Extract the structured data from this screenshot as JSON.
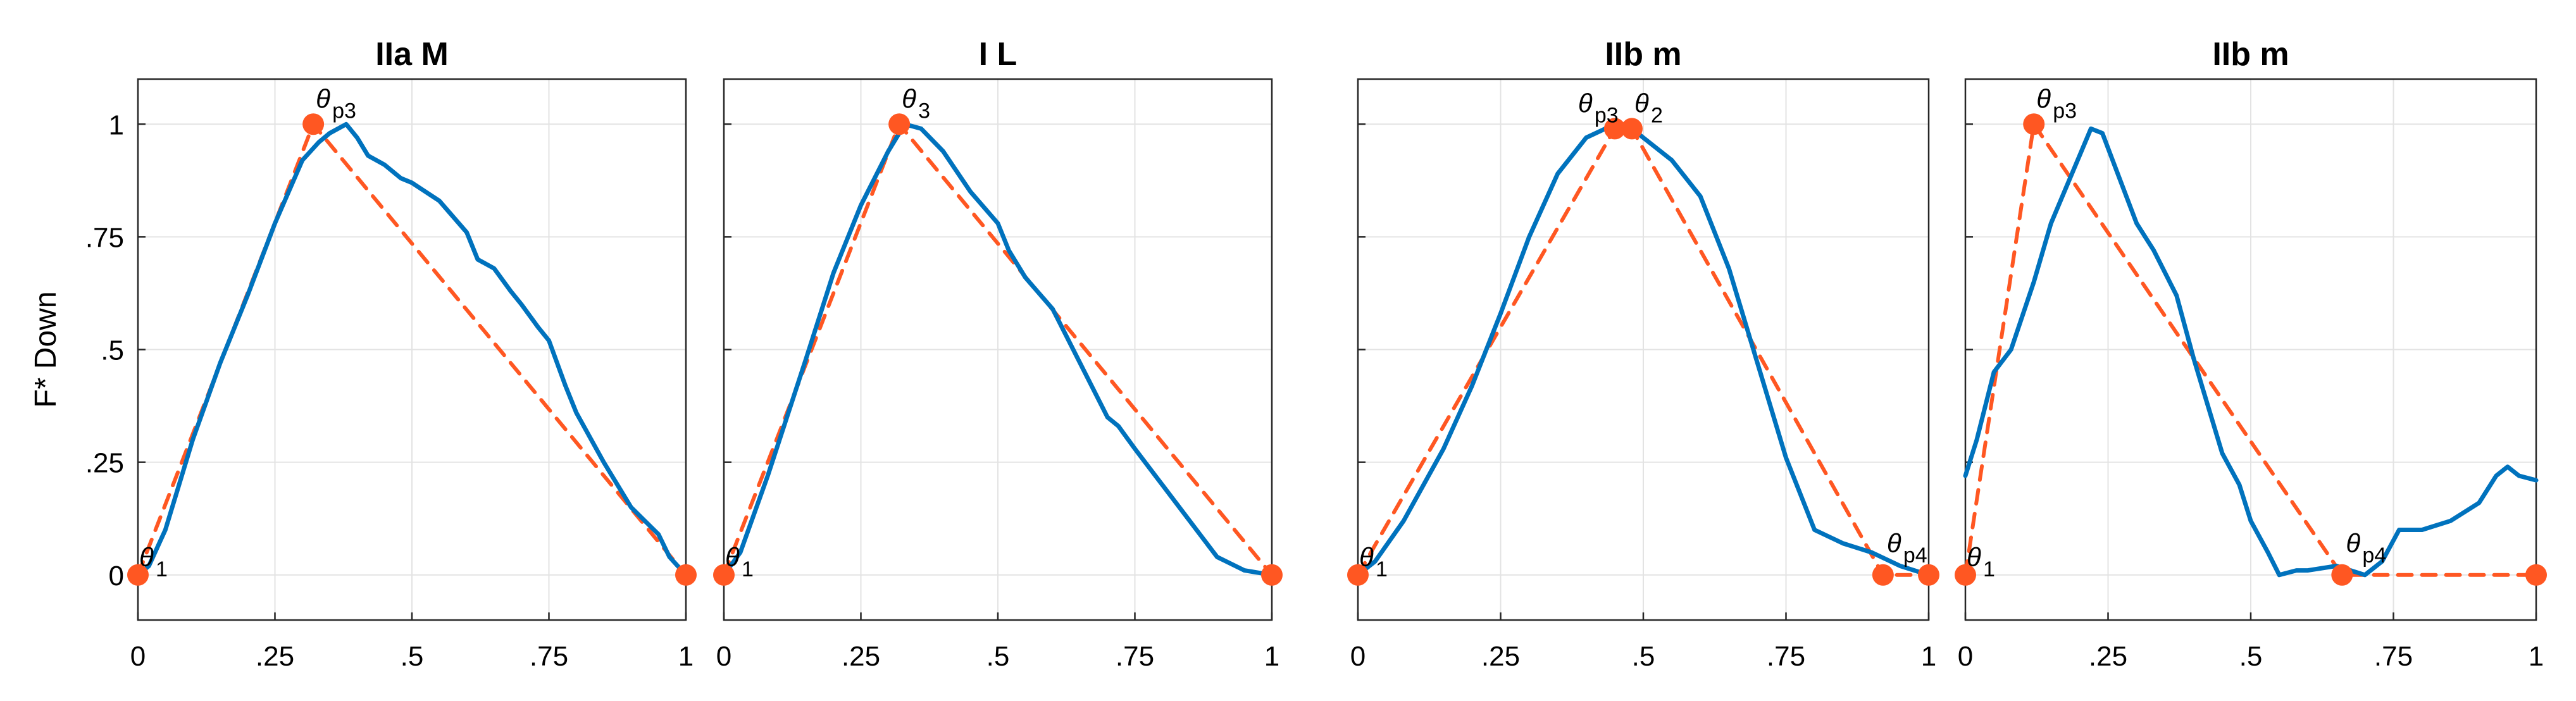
{
  "chart_data": [
    {
      "type": "line",
      "title": "IIa M",
      "ylabel": "F* Down",
      "xlabel": "",
      "xlim": [
        0,
        1.0
      ],
      "ylim": [
        -0.1,
        1.1
      ],
      "xticks": [
        "0",
        ".25",
        ".5",
        ".75",
        "1"
      ],
      "yticks": [
        "0",
        ".25",
        ".5",
        ".75",
        "1"
      ],
      "grid": true,
      "series": [
        {
          "role": "profile",
          "color": "#0072BD",
          "style": "solid",
          "x": [
            0,
            0.02,
            0.05,
            0.1,
            0.15,
            0.2,
            0.25,
            0.3,
            0.33,
            0.35,
            0.38,
            0.4,
            0.42,
            0.45,
            0.48,
            0.5,
            0.55,
            0.6,
            0.62,
            0.65,
            0.68,
            0.7,
            0.73,
            0.75,
            0.78,
            0.8,
            0.85,
            0.9,
            0.95,
            0.97,
            1.0
          ],
          "y": [
            0,
            0.02,
            0.1,
            0.3,
            0.47,
            0.62,
            0.78,
            0.92,
            0.96,
            0.98,
            1.0,
            0.97,
            0.93,
            0.91,
            0.88,
            0.87,
            0.83,
            0.76,
            0.7,
            0.68,
            0.63,
            0.6,
            0.55,
            0.52,
            0.42,
            0.36,
            0.25,
            0.15,
            0.09,
            0.04,
            0.0
          ]
        },
        {
          "role": "fit",
          "color": "#FF5722",
          "style": "dashed",
          "x": [
            0,
            0.32,
            1.0
          ],
          "y": [
            0,
            1.0,
            0
          ]
        }
      ],
      "points": [
        {
          "x": 0,
          "y": 0,
          "label": "θ",
          "sub": "1"
        },
        {
          "x": 0.32,
          "y": 1.0,
          "label": "θ",
          "sub": "p3"
        },
        {
          "x": 1.0,
          "y": 0,
          "label": "",
          "sub": ""
        }
      ]
    },
    {
      "type": "line",
      "title": "I L",
      "xlabel": "",
      "xlim": [
        0,
        1.0
      ],
      "ylim": [
        -0.1,
        1.1
      ],
      "xticks": [
        "0",
        ".25",
        ".5",
        ".75",
        "1"
      ],
      "grid": true,
      "series": [
        {
          "role": "profile",
          "color": "#0072BD",
          "style": "solid",
          "x": [
            0,
            0.03,
            0.08,
            0.15,
            0.2,
            0.25,
            0.3,
            0.33,
            0.36,
            0.4,
            0.45,
            0.5,
            0.52,
            0.55,
            0.6,
            0.65,
            0.7,
            0.72,
            0.75,
            0.8,
            0.85,
            0.9,
            0.95,
            1.0
          ],
          "y": [
            0,
            0.05,
            0.22,
            0.48,
            0.67,
            0.82,
            0.94,
            1.0,
            0.99,
            0.94,
            0.85,
            0.78,
            0.72,
            0.66,
            0.59,
            0.47,
            0.35,
            0.33,
            0.28,
            0.2,
            0.12,
            0.04,
            0.01,
            0.0
          ]
        },
        {
          "role": "fit",
          "color": "#FF5722",
          "style": "dashed",
          "x": [
            0,
            0.32,
            1.0
          ],
          "y": [
            0,
            1.0,
            0
          ]
        }
      ],
      "points": [
        {
          "x": 0,
          "y": 0,
          "label": "θ",
          "sub": "1"
        },
        {
          "x": 0.32,
          "y": 1.0,
          "label": "θ",
          "sub": "3"
        },
        {
          "x": 1.0,
          "y": 0,
          "label": "",
          "sub": ""
        }
      ]
    },
    {
      "type": "line",
      "title": "IIb m",
      "xlabel": "",
      "xlim": [
        0,
        1.0
      ],
      "ylim": [
        -0.1,
        1.1
      ],
      "xticks": [
        "0",
        ".25",
        ".5",
        ".75",
        "1"
      ],
      "grid": true,
      "series": [
        {
          "role": "profile",
          "color": "#0072BD",
          "style": "solid",
          "x": [
            0,
            0.03,
            0.08,
            0.15,
            0.2,
            0.25,
            0.3,
            0.35,
            0.4,
            0.45,
            0.48,
            0.5,
            0.55,
            0.6,
            0.65,
            0.7,
            0.75,
            0.8,
            0.85,
            0.9,
            0.95,
            1.0
          ],
          "y": [
            0,
            0.03,
            0.12,
            0.28,
            0.42,
            0.58,
            0.75,
            0.89,
            0.97,
            1.0,
            0.99,
            0.97,
            0.92,
            0.84,
            0.68,
            0.47,
            0.26,
            0.1,
            0.07,
            0.05,
            0.02,
            0.0
          ]
        },
        {
          "role": "fit",
          "color": "#FF5722",
          "style": "dashed",
          "x": [
            0,
            0.45,
            0.48,
            0.92,
            1.0
          ],
          "y": [
            0,
            0.99,
            0.99,
            0,
            0
          ]
        }
      ],
      "points": [
        {
          "x": 0,
          "y": 0,
          "label": "θ",
          "sub": "1"
        },
        {
          "x": 0.45,
          "y": 0.99,
          "label": "θ",
          "sub": "p3"
        },
        {
          "x": 0.48,
          "y": 0.99,
          "label": "θ",
          "sub": "2"
        },
        {
          "x": 0.92,
          "y": 0,
          "label": "θ",
          "sub": "p4"
        },
        {
          "x": 1.0,
          "y": 0,
          "label": "",
          "sub": ""
        }
      ]
    },
    {
      "type": "line",
      "title": "IIb m",
      "xlabel": "",
      "xlim": [
        0,
        1.0
      ],
      "ylim": [
        -0.1,
        1.1
      ],
      "xticks": [
        "0",
        ".25",
        ".5",
        ".75",
        "1"
      ],
      "grid": true,
      "series": [
        {
          "role": "profile",
          "color": "#0072BD",
          "style": "solid",
          "x": [
            0,
            0.02,
            0.05,
            0.08,
            0.12,
            0.15,
            0.2,
            0.22,
            0.24,
            0.27,
            0.3,
            0.33,
            0.37,
            0.4,
            0.45,
            0.48,
            0.5,
            0.53,
            0.55,
            0.58,
            0.6,
            0.65,
            0.7,
            0.73,
            0.76,
            0.8,
            0.85,
            0.9,
            0.93,
            0.95,
            0.97,
            1.0
          ],
          "y": [
            0.22,
            0.3,
            0.45,
            0.5,
            0.65,
            0.78,
            0.93,
            0.99,
            0.98,
            0.88,
            0.78,
            0.72,
            0.62,
            0.48,
            0.27,
            0.2,
            0.12,
            0.05,
            0.0,
            0.01,
            0.01,
            0.02,
            0.0,
            0.03,
            0.1,
            0.1,
            0.12,
            0.16,
            0.22,
            0.24,
            0.22,
            0.21
          ]
        },
        {
          "role": "fit",
          "color": "#FF5722",
          "style": "dashed",
          "x": [
            0,
            0.12,
            0.66,
            1.0
          ],
          "y": [
            0,
            1.0,
            0,
            0
          ]
        }
      ],
      "points": [
        {
          "x": 0,
          "y": 0,
          "label": "θ",
          "sub": "1"
        },
        {
          "x": 0.12,
          "y": 1.0,
          "label": "θ",
          "sub": "p3"
        },
        {
          "x": 0.66,
          "y": 0,
          "label": "θ",
          "sub": "p4"
        },
        {
          "x": 1.0,
          "y": 0,
          "label": "",
          "sub": ""
        }
      ]
    }
  ]
}
